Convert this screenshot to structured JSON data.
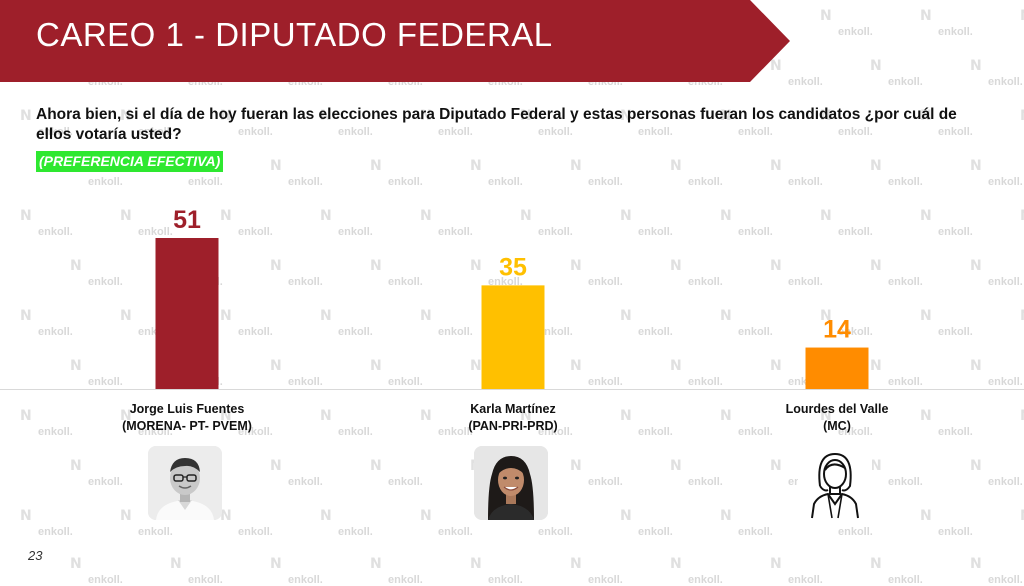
{
  "banner": {
    "title": "CAREO 1 - DIPUTADO FEDERAL",
    "color": "#9e1f2a"
  },
  "question": "Ahora bien, si el día de hoy fueran las elecciones para Diputado Federal y estas personas fueran los candidatos ¿por cuál de ellos votaría usted?",
  "preference_label": "(PREFERENCIA EFECTIVA)",
  "preference_color": "#2ee830",
  "watermark": "enkoll.",
  "page_number": "23",
  "candidates": [
    {
      "name": "Jorge Luis Fuentes",
      "party": "(MORENA- PT- PVEM)",
      "photo": "male-photo"
    },
    {
      "name": "Karla Martínez",
      "party": "(PAN-PRI-PRD)",
      "photo": "female-photo"
    },
    {
      "name": "Lourdes del Valle",
      "party": "(MC)",
      "photo": "female-outline-icon"
    }
  ],
  "chart_data": {
    "type": "bar",
    "categories": [
      "Jorge Luis Fuentes (MORENA- PT- PVEM)",
      "Karla Martínez (PAN-PRI-PRD)",
      "Lourdes del Valle (MC)"
    ],
    "values": [
      51,
      35,
      14
    ],
    "labels": [
      "51",
      "35",
      "14"
    ],
    "colors": [
      "#9e1f2a",
      "#ffc000",
      "#ff8c00"
    ],
    "title": "",
    "xlabel": "",
    "ylabel": "",
    "ylim": [
      0,
      51
    ],
    "grid": false,
    "legend": "none"
  }
}
